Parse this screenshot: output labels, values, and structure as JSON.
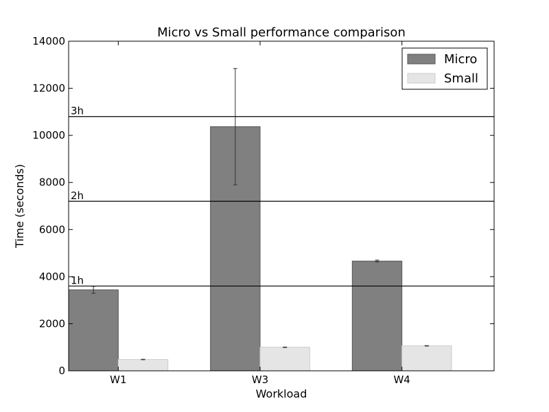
{
  "chart_data": {
    "type": "bar",
    "title": "Micro vs Small performance comparison",
    "xlabel": "Workload",
    "ylabel": "Time (seconds)",
    "ylim": [
      0,
      14000
    ],
    "yticks": [
      0,
      2000,
      4000,
      6000,
      8000,
      10000,
      12000,
      14000
    ],
    "categories": [
      "W1",
      "W3",
      "W4"
    ],
    "series": [
      {
        "name": "Micro",
        "values": [
          3440,
          10370,
          4660
        ],
        "errors": [
          150,
          2470,
          40
        ],
        "color": "#808080"
      },
      {
        "name": "Small",
        "values": [
          480,
          1000,
          1060
        ],
        "errors": [
          10,
          10,
          10
        ],
        "color": "#e5e5e5"
      }
    ],
    "reference_lines": [
      {
        "label": "1h",
        "value": 3600
      },
      {
        "label": "2h",
        "value": 7200
      },
      {
        "label": "3h",
        "value": 10800
      }
    ],
    "legend": {
      "position": "top-right"
    },
    "grid": false
  }
}
